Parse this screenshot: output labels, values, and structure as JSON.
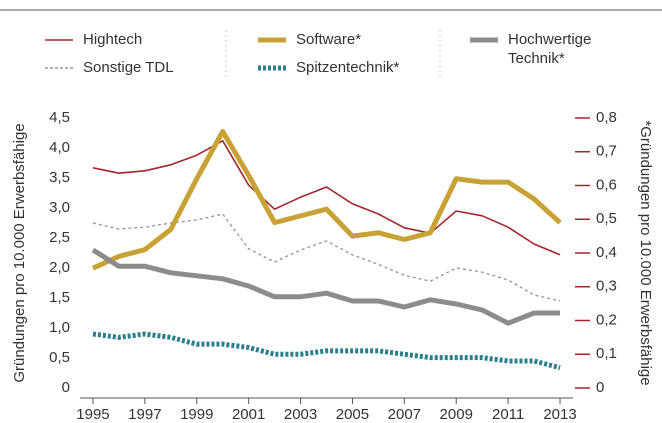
{
  "chart_data": {
    "type": "line",
    "y_label": "Gründungen pro 10.000 Erwerbsfähige",
    "y2_label": "*Gründungen pro 10.000 Erwerbsfähige",
    "x": [
      1995,
      1996,
      1997,
      1998,
      1999,
      2000,
      2001,
      2002,
      2003,
      2004,
      2005,
      2006,
      2007,
      2008,
      2009,
      2010,
      2011,
      2012,
      2013
    ],
    "xlim": [
      1994.5,
      2013.5
    ],
    "xticks": [
      1995,
      1997,
      1999,
      2001,
      2003,
      2005,
      2007,
      2009,
      2011,
      2013
    ],
    "ylim": [
      0,
      4.5
    ],
    "yticks": [
      0,
      {
        "value": 0.5,
        "label": "0,5"
      },
      {
        "value": 1,
        "label": "1,0"
      },
      {
        "value": 1.5,
        "label": "1,5"
      },
      {
        "value": 2,
        "label": "2,0"
      },
      {
        "value": 2.5,
        "label": "2,5"
      },
      {
        "value": 3,
        "label": "3,0"
      },
      {
        "value": 3.5,
        "label": "3,5"
      },
      {
        "value": 4,
        "label": "4,0"
      },
      {
        "value": 4.5,
        "label": "4,5"
      }
    ],
    "y2lim": [
      0,
      0.8
    ],
    "y2ticks": [
      0,
      {
        "value": 0.1,
        "label": "0,1"
      },
      {
        "value": 0.2,
        "label": "0,2"
      },
      {
        "value": 0.3,
        "label": "0,3"
      },
      {
        "value": 0.4,
        "label": "0,4"
      },
      {
        "value": 0.5,
        "label": "0,5"
      },
      {
        "value": 0.6,
        "label": "0,6"
      },
      {
        "value": 0.7,
        "label": "0,7"
      },
      {
        "value": 0.8,
        "label": "0,8"
      }
    ],
    "y2tick_color": "#a0282d",
    "series": [
      {
        "name": "Hightech",
        "color": "#a0282d",
        "style": "solid",
        "line_width": 1.6,
        "values": [
          3.67,
          3.58,
          3.62,
          3.72,
          3.88,
          4.12,
          3.38,
          2.98,
          3.18,
          3.35,
          3.07,
          2.9,
          2.67,
          2.58,
          2.95,
          2.87,
          2.68,
          2.4,
          2.22
        ]
      },
      {
        "name": "Sonstige TDL",
        "color": "#9a9a9a",
        "style": "dotted",
        "line_width": 1.4,
        "values": [
          2.75,
          2.65,
          2.68,
          2.75,
          2.8,
          2.9,
          2.32,
          2.1,
          2.3,
          2.45,
          2.22,
          2.06,
          1.88,
          1.78,
          2.0,
          1.93,
          1.8,
          1.55,
          1.45
        ]
      },
      {
        "name": "Software*",
        "color": "#c9a235",
        "style": "solid",
        "line_width": 5,
        "axis": "y2",
        "values": [
          0.355,
          0.39,
          0.41,
          0.47,
          0.62,
          0.76,
          0.63,
          0.49,
          0.51,
          0.53,
          0.45,
          0.46,
          0.44,
          0.46,
          0.62,
          0.61,
          0.61,
          0.56,
          0.49
        ]
      },
      {
        "name": "Spitzentechnik*",
        "color": "#2a7f8c",
        "style": "dotted",
        "line_width": 5,
        "axis": "y2",
        "values": [
          0.16,
          0.15,
          0.16,
          0.15,
          0.13,
          0.13,
          0.12,
          0.1,
          0.1,
          0.11,
          0.11,
          0.11,
          0.1,
          0.09,
          0.09,
          0.09,
          0.08,
          0.08,
          0.06
        ]
      },
      {
        "name": "Hochwertige Technik*",
        "color": "#8c8c8c",
        "style": "solid",
        "line_width": 5,
        "values": [
          2.3,
          2.03,
          2.03,
          1.92,
          1.87,
          1.82,
          1.7,
          1.52,
          1.52,
          1.58,
          1.45,
          1.45,
          1.35,
          1.47,
          1.4,
          1.3,
          1.08,
          1.25,
          1.25
        ]
      }
    ]
  }
}
